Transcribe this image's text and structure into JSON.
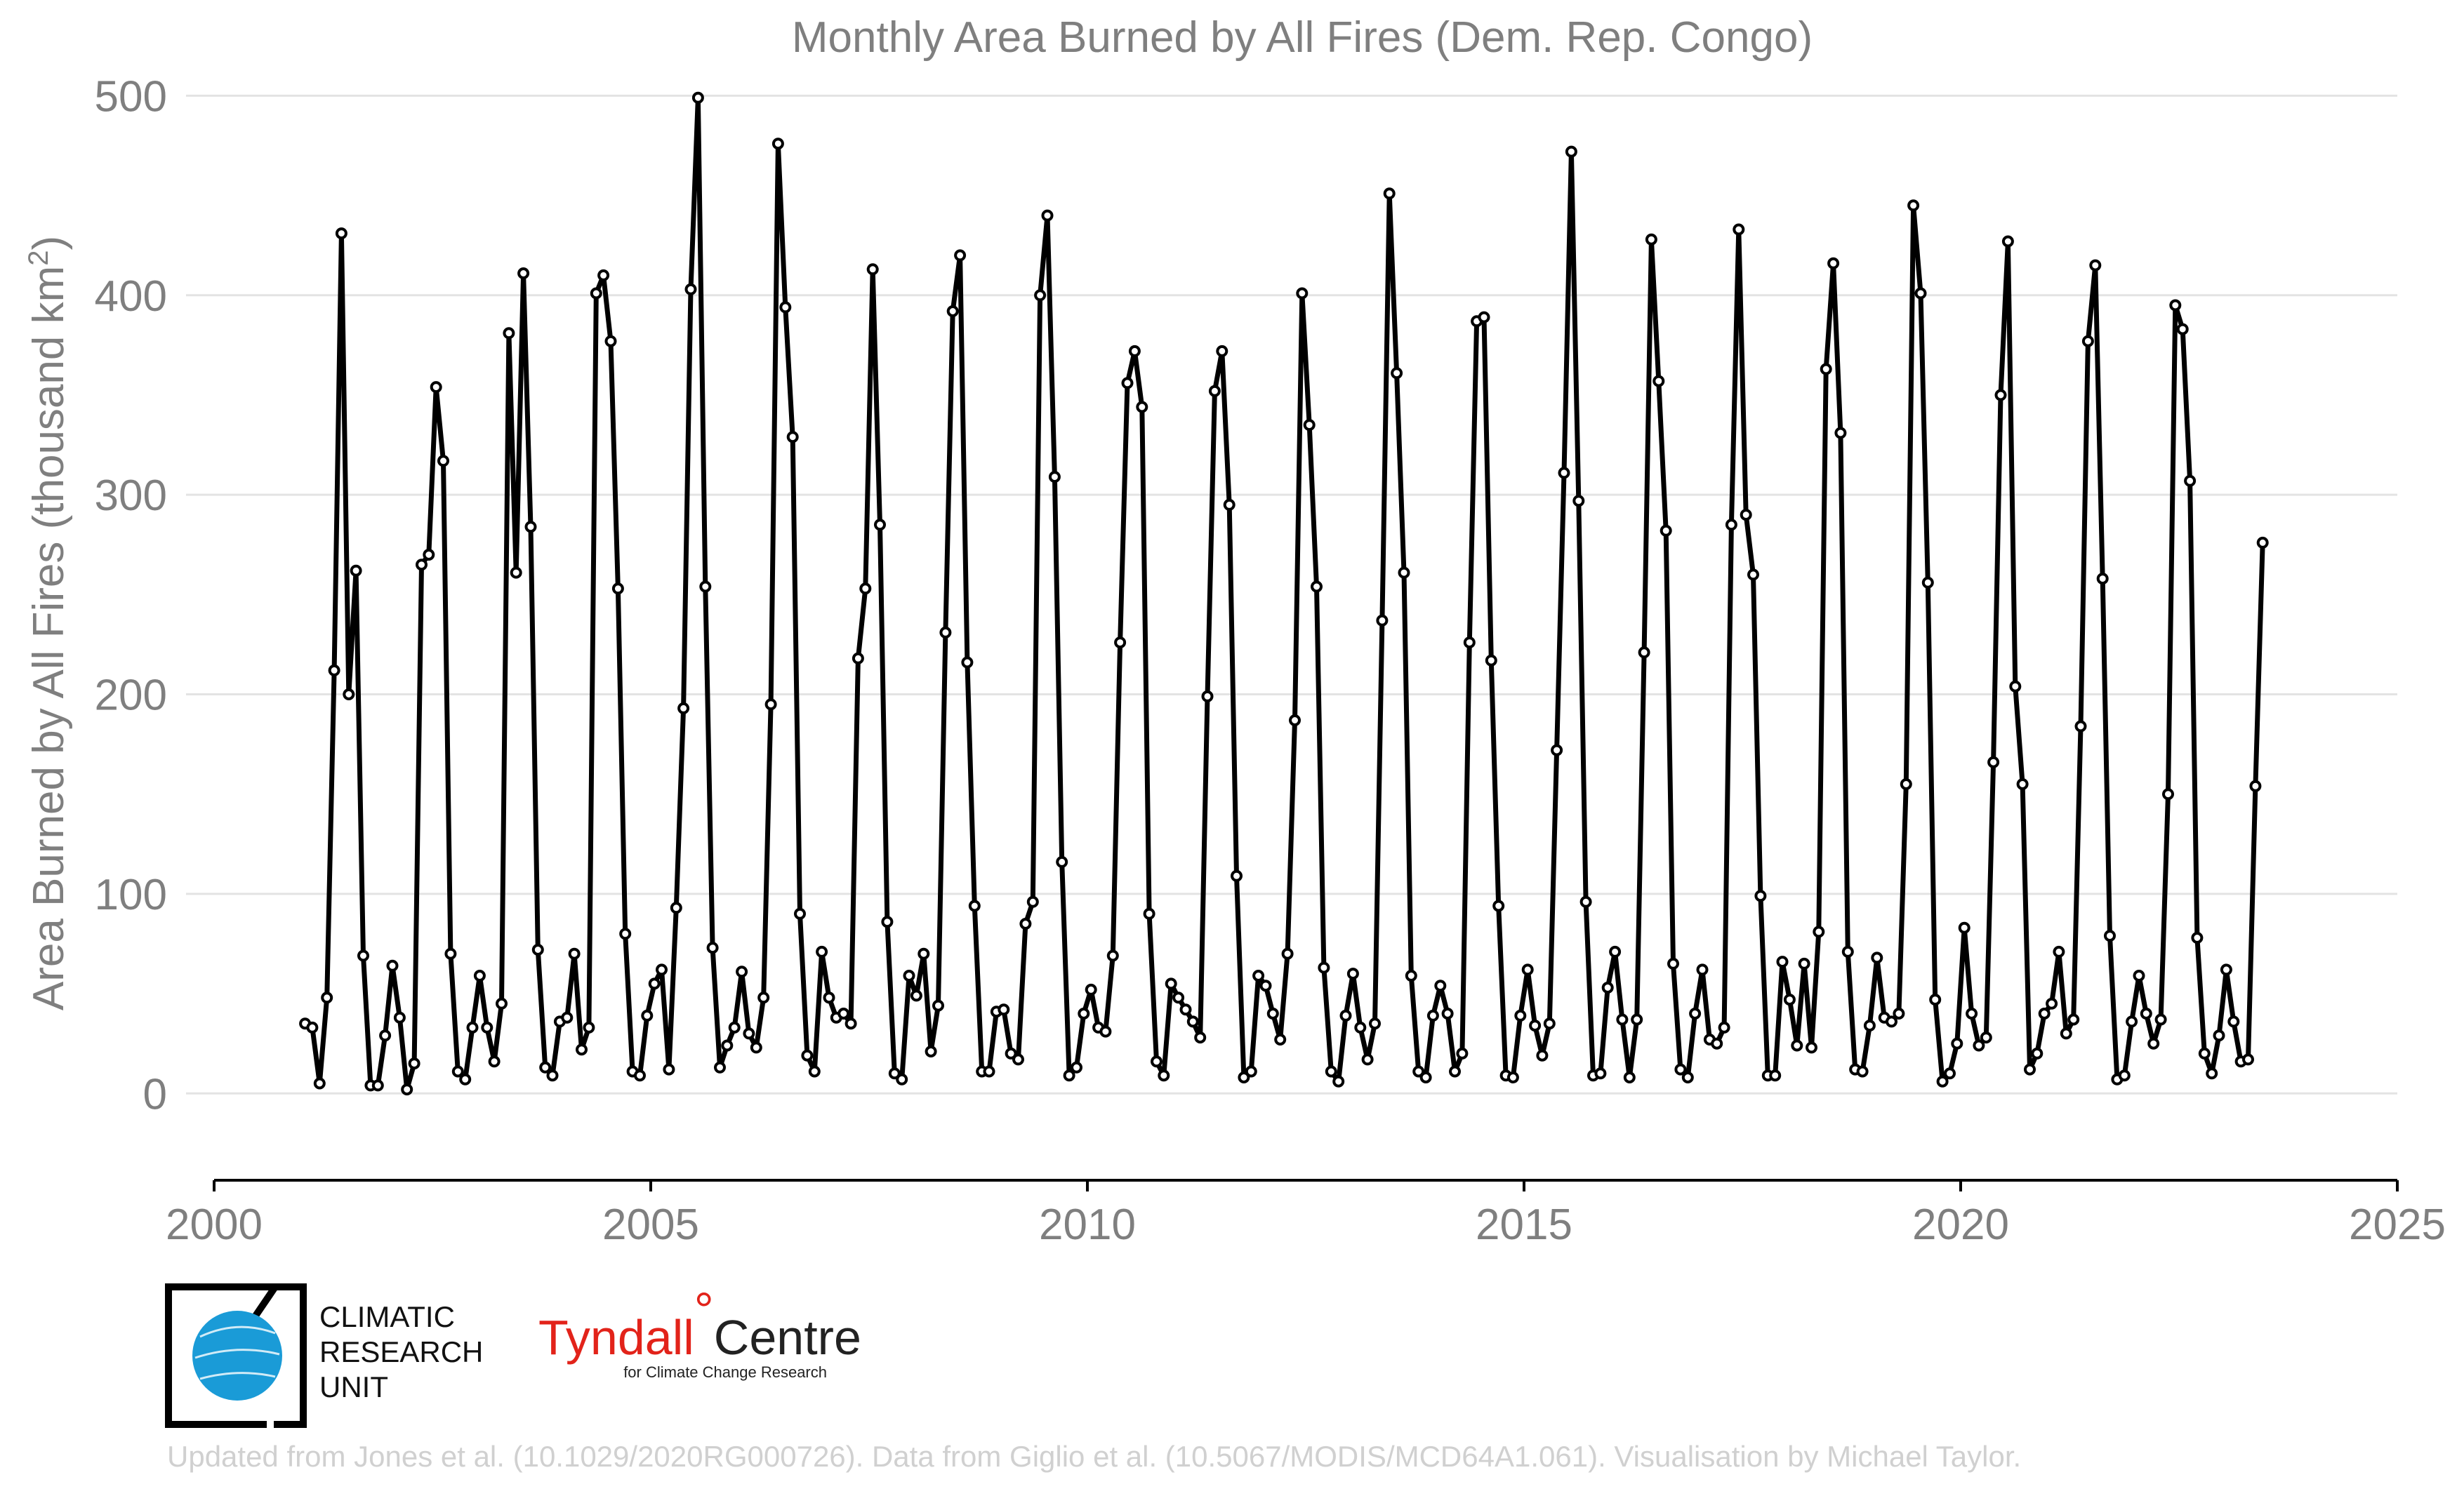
{
  "chart_data": {
    "type": "line",
    "title": "Monthly Area Burned by All Fires (Dem. Rep. Congo)",
    "xlabel": "",
    "ylabel": "Area Burned by All Fires (thousand km",
    "ylabel_sup": "2",
    "ylabel_close": ")",
    "xlim": [
      2000,
      2025
    ],
    "ylim": [
      -40,
      510
    ],
    "xticks": [
      2000,
      2005,
      2010,
      2015,
      2020,
      2025
    ],
    "xtick_labels": [
      "2000",
      "2005",
      "2010",
      "2015",
      "2020",
      "2025"
    ],
    "yticks": [
      0,
      100,
      200,
      300,
      400,
      500
    ],
    "ytick_labels": [
      "0",
      "100",
      "200",
      "300",
      "400",
      "500"
    ],
    "grid": "horizontal",
    "legend": "none",
    "x_start": {
      "year": 2001,
      "month": 1
    },
    "series": [
      {
        "color": "#000000",
        "values": [
          35,
          33,
          5,
          48,
          212,
          431,
          200,
          262,
          69,
          4,
          4,
          29,
          64,
          38,
          2,
          15,
          265,
          270,
          354,
          317,
          70,
          11,
          7,
          33,
          59,
          33,
          16,
          45,
          381,
          261,
          411,
          284,
          72,
          13,
          9,
          36,
          38,
          70,
          22,
          33,
          401,
          410,
          377,
          253,
          80,
          11,
          9,
          39,
          55,
          62,
          12,
          93,
          193,
          403,
          499,
          254,
          73,
          13,
          24,
          33,
          61,
          30,
          23,
          48,
          195,
          476,
          394,
          329,
          90,
          19,
          11,
          71,
          48,
          38,
          40,
          35,
          218,
          253,
          413,
          285,
          86,
          10,
          7,
          59,
          49,
          70,
          21,
          44,
          231,
          392,
          420,
          216,
          94,
          11,
          11,
          41,
          42,
          20,
          17,
          85,
          96,
          400,
          440,
          309,
          116,
          9,
          13,
          40,
          52,
          33,
          31,
          69,
          226,
          356,
          372,
          344,
          90,
          16,
          9,
          55,
          48,
          42,
          36,
          28,
          199,
          352,
          372,
          295,
          109,
          8,
          11,
          59,
          54,
          40,
          27,
          70,
          187,
          401,
          335,
          254,
          63,
          11,
          6,
          39,
          60,
          33,
          17,
          35,
          237,
          451,
          361,
          261,
          59,
          11,
          8,
          39,
          54,
          40,
          11,
          20,
          226,
          387,
          389,
          217,
          94,
          9,
          8,
          39,
          62,
          34,
          19,
          35,
          172,
          311,
          472,
          297,
          96,
          9,
          10,
          53,
          71,
          37,
          8,
          37,
          221,
          428,
          357,
          282,
          65,
          12,
          8,
          40,
          62,
          27,
          25,
          33,
          285,
          433,
          290,
          260,
          99,
          9,
          9,
          66,
          47,
          24,
          65,
          23,
          81,
          363,
          416,
          331,
          71,
          12,
          11,
          34,
          68,
          38,
          36,
          40,
          155,
          445,
          401,
          256,
          47,
          6,
          10,
          25,
          83,
          40,
          24,
          28,
          166,
          350,
          427,
          204,
          155,
          12,
          20,
          40,
          45,
          71,
          30,
          37,
          184,
          377,
          415,
          258,
          79,
          7,
          9,
          36,
          59,
          40,
          25,
          37,
          150,
          395,
          383,
          307,
          78,
          20,
          10,
          29,
          62,
          36,
          16,
          17,
          154,
          276
        ]
      }
    ]
  },
  "logos": {
    "cru_line1": "CLIMATIC",
    "cru_line2": "RESEARCH",
    "cru_line3": "UNIT",
    "tyndall_name": "Tyndall",
    "tyndall_degree": "°",
    "tyndall_centre": "Centre",
    "tyndall_sub": "for Climate Change Research",
    "cru_globe_color": "#1a9bd7",
    "tyndall_accent": "#e2231a"
  },
  "credit": "Updated from Jones et al. (10.1029/2020RG000726). Data from Giglio et al. (10.5067/MODIS/MCD64A1.061). Visualisation by Michael Taylor."
}
